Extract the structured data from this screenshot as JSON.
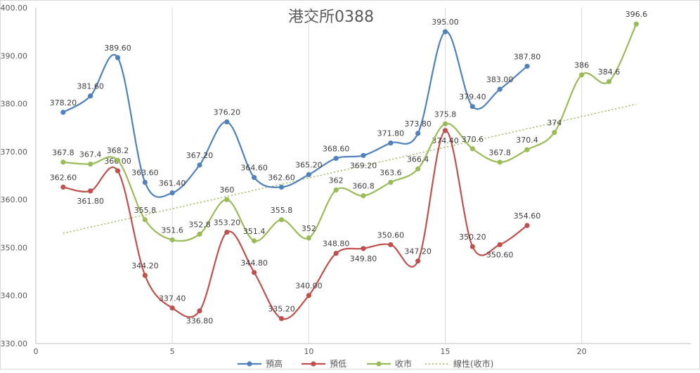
{
  "chart_data": {
    "type": "line",
    "title": "港交所0388",
    "xlabel": "",
    "ylabel": "",
    "xlim": [
      0,
      24
    ],
    "ylim": [
      330,
      400
    ],
    "x_ticks": [
      0,
      5,
      10,
      15,
      20
    ],
    "y_ticks": [
      "330.00",
      "340.00",
      "350.00",
      "360.00",
      "370.00",
      "380.00",
      "390.00",
      "400.00"
    ],
    "grid": "vertical",
    "legend_position": "bottom",
    "series": [
      {
        "name": "預高",
        "color": "#4f81bd",
        "x": [
          1,
          2,
          3,
          4,
          5,
          6,
          7,
          8,
          9,
          10,
          11,
          12,
          13,
          14,
          15,
          16,
          17,
          18
        ],
        "values": [
          378.2,
          381.6,
          389.6,
          363.6,
          361.4,
          367.2,
          376.2,
          364.6,
          362.6,
          365.2,
          368.6,
          369.2,
          371.8,
          373.8,
          395.0,
          379.4,
          383.0,
          387.8
        ],
        "labels": [
          "378.20",
          "381.60",
          "389.60",
          "363.60",
          "361.40",
          "367.20",
          "376.20",
          "364.60",
          "362.60",
          "365.20",
          "368.60",
          "369.20",
          "371.80",
          "373.80",
          "395.00",
          "379.40",
          "383.00",
          "387.80"
        ]
      },
      {
        "name": "預低",
        "color": "#c0504d",
        "x": [
          1,
          2,
          3,
          4,
          5,
          6,
          7,
          8,
          9,
          10,
          11,
          12,
          13,
          14,
          15,
          16,
          17,
          18
        ],
        "values": [
          362.6,
          361.8,
          366.0,
          344.2,
          337.4,
          336.8,
          353.2,
          344.8,
          335.2,
          340.0,
          348.8,
          349.8,
          350.6,
          347.2,
          374.4,
          350.2,
          350.6,
          354.6
        ],
        "labels": [
          "362.60",
          "361.80",
          "366.00",
          "344.20",
          "337.40",
          "336.80",
          "353.20",
          "344.80",
          "335.20",
          "340.00",
          "348.80",
          "349.80",
          "350.60",
          "347.20",
          "374.40",
          "350.20",
          "350.60",
          "354.60"
        ]
      },
      {
        "name": "收市",
        "color": "#9bbb59",
        "x": [
          1,
          2,
          3,
          4,
          5,
          6,
          7,
          8,
          9,
          10,
          11,
          12,
          13,
          14,
          15,
          16,
          17,
          18,
          19,
          20,
          21,
          22
        ],
        "values": [
          367.8,
          367.4,
          368.2,
          355.8,
          351.6,
          352.8,
          360,
          351.4,
          355.8,
          352,
          362,
          360.8,
          363.6,
          366.4,
          375.8,
          370.6,
          367.8,
          370.4,
          374,
          386,
          384.6,
          396.6
        ],
        "labels": [
          "367.8",
          "367.4",
          "368.2",
          "355.8",
          "351.6",
          "352.8",
          "360",
          "351.4",
          "355.8",
          "352",
          "362",
          "360.8",
          "363.6",
          "366.4",
          "375.8",
          "370.6",
          "367.8",
          "370.4",
          "374",
          "386",
          "384.6",
          "396.6"
        ]
      }
    ],
    "trendline": {
      "name": "線性(收市)",
      "of_series": "收市",
      "color": "#9bbb59"
    }
  }
}
